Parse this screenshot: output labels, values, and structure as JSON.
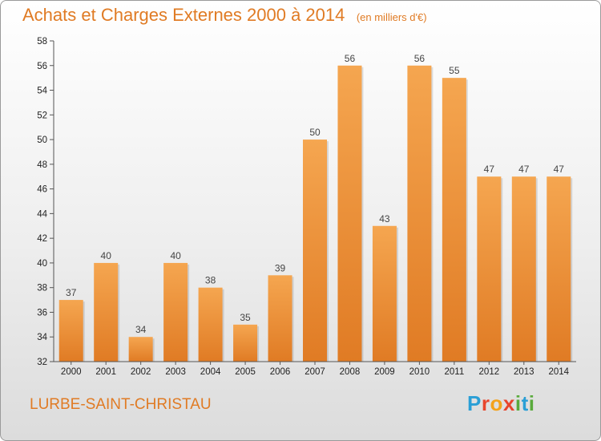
{
  "header": {
    "title": "Achats et Charges Externes 2000 à 2014",
    "subtitle": "(en milliers d'€)"
  },
  "footer": {
    "commune": "LURBE-SAINT-CHRISTAU",
    "logo_letters": [
      "P",
      "r",
      "o",
      "x",
      "i",
      "t",
      "i"
    ],
    "logo_colors": [
      "#2a9fd6",
      "#e8452c",
      "#f4a21b",
      "#e8452c",
      "#5aaa3c",
      "#2a9fd6",
      "#5aaa3c"
    ]
  },
  "chart_data": {
    "type": "bar",
    "title": "Achats et Charges Externes 2000 à 2014",
    "subtitle": "(en milliers d'€)",
    "categories": [
      "2000",
      "2001",
      "2002",
      "2003",
      "2004",
      "2005",
      "2006",
      "2007",
      "2008",
      "2009",
      "2010",
      "2011",
      "2012",
      "2013",
      "2014"
    ],
    "values": [
      37,
      40,
      34,
      40,
      38,
      35,
      39,
      50,
      56,
      43,
      56,
      55,
      47,
      47,
      47
    ],
    "ylim": [
      32,
      58
    ],
    "yticks": [
      32,
      34,
      36,
      38,
      40,
      42,
      44,
      46,
      48,
      50,
      52,
      54,
      56,
      58
    ],
    "grid": false,
    "bar_color_top": "#f5a650",
    "bar_color_bottom": "#e07b24"
  }
}
